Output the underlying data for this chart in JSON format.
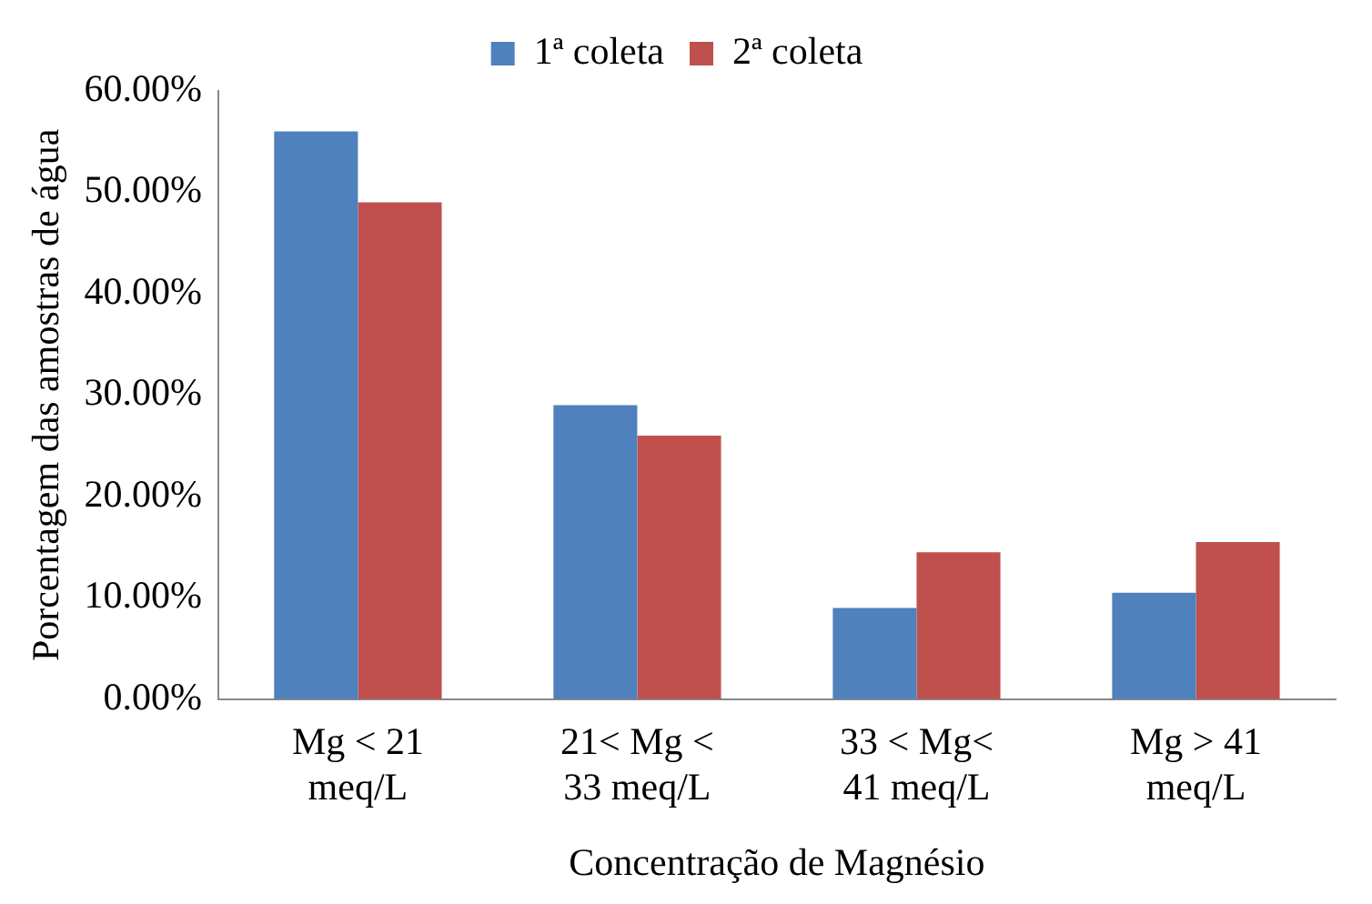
{
  "chart_data": {
    "type": "bar",
    "xlabel": "Concentração de Magnésio",
    "ylabel": "Porcentagem das amostras de água",
    "categories": [
      "Mg < 21 meq/L",
      "21< Mg < 33 meq/L",
      "33 < Mg< 41 meq/L",
      "Mg > 41 meq/L"
    ],
    "series": [
      {
        "name": "1ª coleta",
        "color": "#4f81bd",
        "values": [
          56,
          29,
          9,
          10.5
        ]
      },
      {
        "name": "2ª coleta",
        "color": "#c0504d",
        "values": [
          49,
          26,
          14.5,
          15.5
        ]
      }
    ],
    "ylim": [
      0,
      60
    ],
    "yticks": [
      {
        "value": 0,
        "label": "0.00%"
      },
      {
        "value": 10,
        "label": "10.00%"
      },
      {
        "value": 20,
        "label": "20.00%"
      },
      {
        "value": 30,
        "label": "30.00%"
      },
      {
        "value": 40,
        "label": "40.00%"
      },
      {
        "value": 50,
        "label": "50.00%"
      },
      {
        "value": 60,
        "label": "60.00%"
      }
    ],
    "grid": false,
    "legend": "top"
  }
}
